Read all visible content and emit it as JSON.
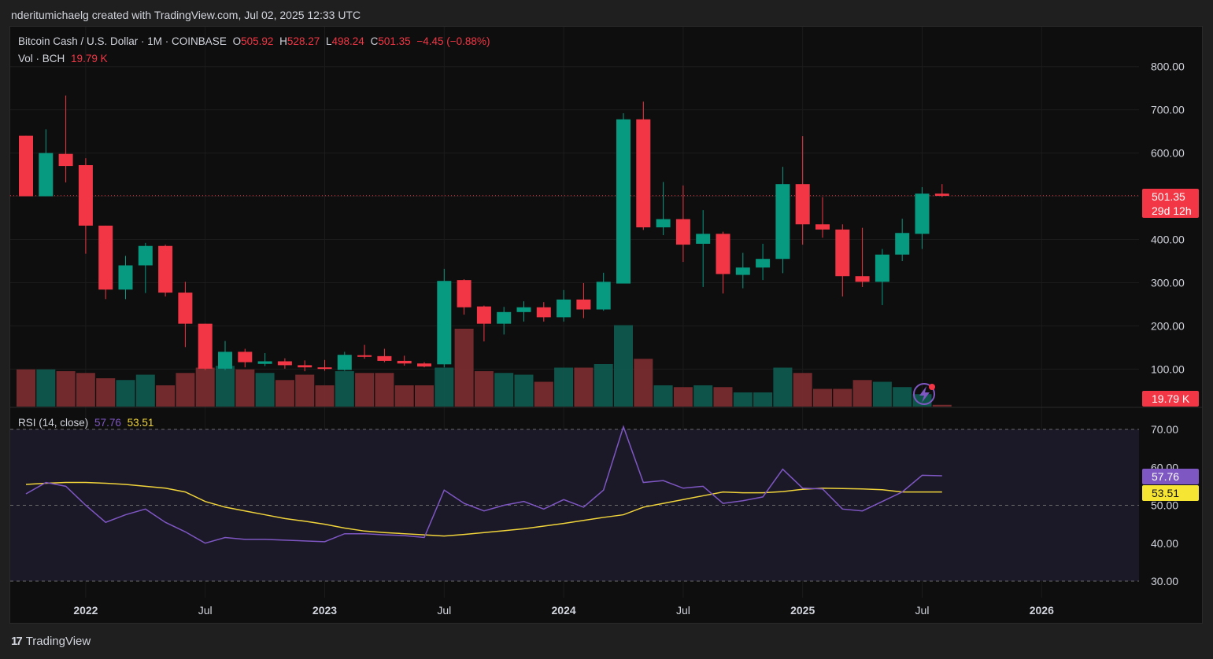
{
  "header": {
    "text": "nderitumichaelg created with TradingView.com, Jul 02, 2025 12:33 UTC"
  },
  "legend": {
    "symbol": "Bitcoin Cash / U.S. Dollar · 1M · COINBASE",
    "o_label": "O",
    "o": "505.92",
    "h_label": "H",
    "h": "528.27",
    "l_label": "L",
    "l": "498.24",
    "c_label": "C",
    "c": "501.35",
    "change": "−4.45 (−0.88%)",
    "vol_label": "Vol · BCH",
    "vol": "19.79 K"
  },
  "rsi_legend": {
    "label": "RSI (14, close)",
    "rsi": "57.76",
    "ma": "53.51"
  },
  "badges": {
    "price": "501.35",
    "countdown": "29d 12h",
    "volume": "19.79 K",
    "rsi": "57.76",
    "rsi_ma": "53.51"
  },
  "footer": {
    "brand": "TradingView",
    "logo": "17"
  },
  "colors": {
    "up": "#089981",
    "down": "#f23645",
    "rsi_line": "#7e57c2",
    "rsi_ma": "#f0d43a",
    "background": "#0e0e0e"
  },
  "chart_data": {
    "type": "candlestick",
    "price_axis": {
      "ticks": [
        100,
        200,
        300,
        400,
        500,
        600,
        700,
        800
      ],
      "tick_labels": [
        "100.00",
        "200.00",
        "300.00",
        "400.00",
        "",
        "600.00",
        "700.00",
        "800.00"
      ]
    },
    "rsi_axis": {
      "ticks": [
        30,
        40,
        50,
        60,
        70
      ],
      "tick_labels": [
        "30.00",
        "40.00",
        "50.00",
        "60.00",
        "70.00"
      ],
      "bands": [
        30,
        70
      ],
      "mid": 50
    },
    "x_tick_labels": [
      "2022",
      "Jul",
      "2023",
      "Jul",
      "2024",
      "Jul",
      "2025",
      "Jul",
      "2026"
    ],
    "x_tick_index": [
      3,
      9,
      15,
      21,
      27,
      33,
      39,
      45,
      51
    ],
    "bold_x_ticks": [
      "2022",
      "2023",
      "2024",
      "2025",
      "2026"
    ],
    "current_price": 501.35,
    "candles": [
      {
        "o": 640,
        "h": 640,
        "l": 500,
        "c": 500
      },
      {
        "o": 500,
        "h": 655,
        "l": 500,
        "c": 600
      },
      {
        "o": 598,
        "h": 733,
        "l": 532,
        "c": 570
      },
      {
        "o": 572,
        "h": 588,
        "l": 367,
        "c": 432
      },
      {
        "o": 432,
        "h": 432,
        "l": 262,
        "c": 284
      },
      {
        "o": 284,
        "h": 362,
        "l": 262,
        "c": 340
      },
      {
        "o": 340,
        "h": 392,
        "l": 276,
        "c": 385
      },
      {
        "o": 385,
        "h": 388,
        "l": 268,
        "c": 277
      },
      {
        "o": 277,
        "h": 302,
        "l": 151,
        "c": 205
      },
      {
        "o": 205,
        "h": 205,
        "l": 98,
        "c": 101
      },
      {
        "o": 101,
        "h": 165,
        "l": 98,
        "c": 140
      },
      {
        "o": 140,
        "h": 147,
        "l": 104,
        "c": 116
      },
      {
        "o": 112,
        "h": 137,
        "l": 107,
        "c": 118
      },
      {
        "o": 118,
        "h": 125,
        "l": 101,
        "c": 109
      },
      {
        "o": 109,
        "h": 120,
        "l": 95,
        "c": 104
      },
      {
        "o": 104,
        "h": 121,
        "l": 96,
        "c": 103
      },
      {
        "o": 98,
        "h": 140,
        "l": 96,
        "c": 133
      },
      {
        "o": 132,
        "h": 156,
        "l": 124,
        "c": 130
      },
      {
        "o": 130,
        "h": 147,
        "l": 116,
        "c": 119
      },
      {
        "o": 119,
        "h": 131,
        "l": 108,
        "c": 113
      },
      {
        "o": 113,
        "h": 116,
        "l": 104,
        "c": 106
      },
      {
        "o": 111,
        "h": 332,
        "l": 104,
        "c": 304
      },
      {
        "o": 306,
        "h": 308,
        "l": 226,
        "c": 243
      },
      {
        "o": 245,
        "h": 247,
        "l": 164,
        "c": 205
      },
      {
        "o": 205,
        "h": 244,
        "l": 180,
        "c": 232
      },
      {
        "o": 232,
        "h": 257,
        "l": 210,
        "c": 243
      },
      {
        "o": 243,
        "h": 255,
        "l": 210,
        "c": 220
      },
      {
        "o": 220,
        "h": 283,
        "l": 210,
        "c": 261
      },
      {
        "o": 261,
        "h": 299,
        "l": 218,
        "c": 238
      },
      {
        "o": 238,
        "h": 323,
        "l": 235,
        "c": 302
      },
      {
        "o": 298,
        "h": 692,
        "l": 298,
        "c": 678
      },
      {
        "o": 678,
        "h": 719,
        "l": 422,
        "c": 428
      },
      {
        "o": 428,
        "h": 533,
        "l": 410,
        "c": 447
      },
      {
        "o": 447,
        "h": 525,
        "l": 348,
        "c": 388
      },
      {
        "o": 390,
        "h": 468,
        "l": 290,
        "c": 413
      },
      {
        "o": 413,
        "h": 418,
        "l": 275,
        "c": 320
      },
      {
        "o": 318,
        "h": 369,
        "l": 287,
        "c": 335
      },
      {
        "o": 335,
        "h": 390,
        "l": 306,
        "c": 355
      },
      {
        "o": 355,
        "h": 568,
        "l": 322,
        "c": 528
      },
      {
        "o": 528,
        "h": 639,
        "l": 388,
        "c": 435
      },
      {
        "o": 435,
        "h": 498,
        "l": 404,
        "c": 423
      },
      {
        "o": 423,
        "h": 435,
        "l": 268,
        "c": 315
      },
      {
        "o": 315,
        "h": 427,
        "l": 290,
        "c": 302
      },
      {
        "o": 302,
        "h": 378,
        "l": 248,
        "c": 365
      },
      {
        "o": 365,
        "h": 448,
        "l": 350,
        "c": 415
      },
      {
        "o": 413,
        "h": 521,
        "l": 378,
        "c": 506
      },
      {
        "o": 506,
        "h": 528,
        "l": 498,
        "c": 501
      }
    ],
    "volumes": [
      21,
      21,
      20,
      19,
      16,
      15,
      18,
      12,
      19,
      22,
      23,
      21,
      19,
      15,
      18,
      12,
      20,
      19,
      19,
      12,
      12,
      22,
      44,
      20,
      19,
      18,
      14,
      22,
      22,
      24,
      46,
      27,
      12,
      11,
      12,
      11,
      8,
      8,
      22,
      19,
      10,
      10,
      15,
      14,
      11,
      7,
      1
    ],
    "rsi": [
      53,
      56,
      55,
      50,
      45.5,
      47.5,
      49,
      45.5,
      43,
      40,
      41.5,
      41,
      41,
      40.8,
      40.6,
      40.4,
      42.5,
      42.5,
      42.2,
      42,
      41.5,
      54,
      50.5,
      48.5,
      50,
      51,
      49,
      51.5,
      49.5,
      54,
      70.7,
      56,
      56.5,
      54.5,
      55,
      50.5,
      51.2,
      52.2,
      59.5,
      54.5,
      54.3,
      49,
      48.5,
      51,
      53.5,
      57.9,
      57.76
    ],
    "rsi_ma_start_index": 0,
    "rsi_ma": [
      55.5,
      55.8,
      56,
      56,
      55.8,
      55.5,
      55,
      54.5,
      53.5,
      51,
      49.5,
      48.5,
      47.5,
      46.5,
      45.8,
      45,
      44,
      43.2,
      42.8,
      42.5,
      42.2,
      41.9,
      42.3,
      42.8,
      43.3,
      43.8,
      44.5,
      45.2,
      46,
      46.8,
      47.5,
      49.5,
      50.5,
      51.5,
      52.5,
      53.5,
      53.3,
      53.3,
      53.6,
      54.2,
      54.5,
      54.4,
      54.3,
      54.1,
      53.5,
      53.5,
      53.51
    ]
  }
}
